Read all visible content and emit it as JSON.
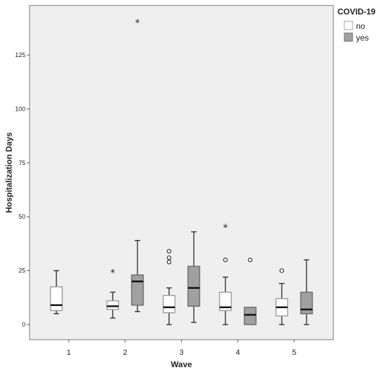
{
  "chart_data": {
    "type": "boxplot",
    "xlabel": "Wave",
    "ylabel": "Hospitalization Days",
    "categories": [
      "1",
      "2",
      "3",
      "4",
      "5"
    ],
    "y_ticks": [
      0,
      25,
      50,
      75,
      100,
      125
    ],
    "ylim": [
      -7,
      147
    ],
    "grid": false,
    "legend": {
      "title": "COVID-19",
      "position": "top-right",
      "entries": [
        {
          "label": "no",
          "color": "#ffffff"
        },
        {
          "label": "yes",
          "color": "#a0a0a0"
        }
      ]
    },
    "series": [
      {
        "name": "no",
        "fill": "#ffffff",
        "stroke": "#a0a0a0",
        "boxes": [
          {
            "category": "1",
            "min": 5,
            "q1": 6.5,
            "median": 9,
            "q3": 17.5,
            "max": 25,
            "outliers": [],
            "extremes": []
          },
          {
            "category": "2",
            "min": 3,
            "q1": 7,
            "median": 8.5,
            "q3": 11,
            "max": 15,
            "outliers": [],
            "extremes": [
              24
            ]
          },
          {
            "category": "3",
            "min": 0,
            "q1": 5.5,
            "median": 8,
            "q3": 13.5,
            "max": 17,
            "outliers": [
              29,
              31,
              34
            ],
            "extremes": []
          },
          {
            "category": "4",
            "min": 0,
            "q1": 6.5,
            "median": 8,
            "q3": 15,
            "max": 22,
            "outliers": [
              30
            ],
            "extremes": [
              45
            ]
          },
          {
            "category": "5",
            "min": 0,
            "q1": 4,
            "median": 8,
            "q3": 12,
            "max": 19,
            "outliers": [
              25
            ],
            "extremes": []
          }
        ]
      },
      {
        "name": "yes",
        "fill": "#a0a0a0",
        "stroke": "#707070",
        "boxes": [
          {
            "category": "2",
            "min": 6,
            "q1": 9,
            "median": 20,
            "q3": 23,
            "max": 39,
            "outliers": [],
            "extremes": [
              140
            ]
          },
          {
            "category": "3",
            "min": 1,
            "q1": 8.5,
            "median": 17,
            "q3": 27,
            "max": 43,
            "outliers": [],
            "extremes": []
          },
          {
            "category": "4",
            "min": 0,
            "q1": 0,
            "median": 4.5,
            "q3": 8,
            "max": 8,
            "outliers": [
              30
            ],
            "extremes": []
          },
          {
            "category": "5",
            "min": 0,
            "q1": 5,
            "median": 7,
            "q3": 15,
            "max": 30,
            "outliers": [],
            "extremes": []
          }
        ]
      }
    ]
  }
}
